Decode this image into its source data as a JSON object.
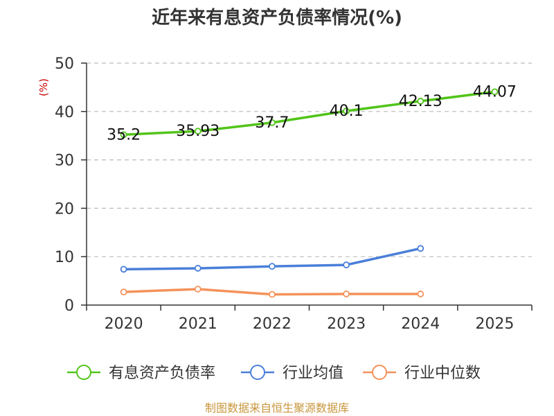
{
  "chart_data": {
    "type": "line",
    "title": "近年来有息资产负债率情况(%)",
    "ylabel": "(%)",
    "xlabel": "",
    "categories": [
      "2020",
      "2021",
      "2022",
      "2023",
      "2024",
      "2025"
    ],
    "ylim": [
      0,
      50
    ],
    "yticks": [
      0,
      10,
      20,
      30,
      40,
      50
    ],
    "grid": true,
    "legend_position": "bottom",
    "series": [
      {
        "name": "有息资产负债率",
        "color": "#52c41a",
        "values": [
          35.2,
          35.93,
          37.7,
          40.1,
          42.13,
          44.07
        ],
        "labels": [
          "35.2",
          "35.93",
          "37.7",
          "40.1",
          "42.13",
          "44.07"
        ]
      },
      {
        "name": "行业均值",
        "color": "#4a7fd9",
        "values": [
          7.4,
          7.6,
          8.0,
          8.3,
          11.7,
          null
        ]
      },
      {
        "name": "行业中位数",
        "color": "#f4925a",
        "values": [
          2.7,
          3.3,
          2.2,
          2.3,
          2.3,
          null
        ]
      }
    ]
  },
  "source": "制图数据来自恒生聚源数据库",
  "colors": {
    "title": "#333333",
    "unit": "#cc0000",
    "source": "#c8963c",
    "grid": "#bbbbbb"
  }
}
